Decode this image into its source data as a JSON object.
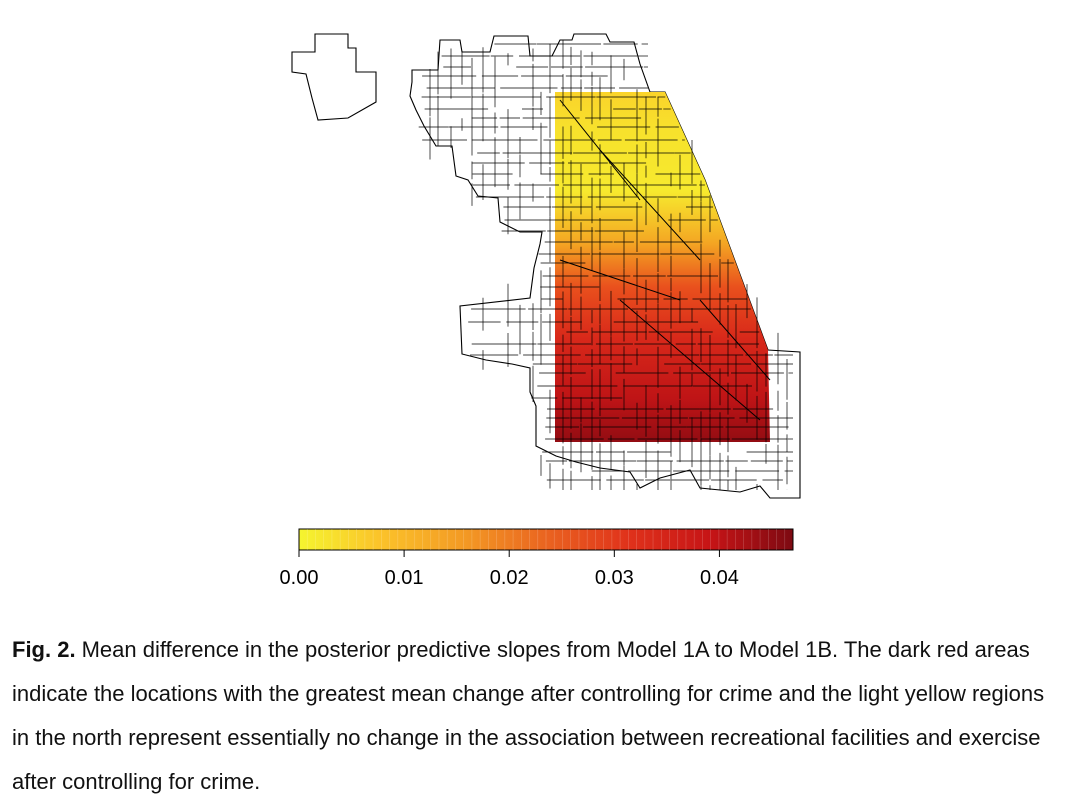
{
  "figure": {
    "colorbar": {
      "colors": [
        "#f5f52f",
        "#fbc22a",
        "#f39a24",
        "#ea6420",
        "#e0321b",
        "#c61416",
        "#7d0a12"
      ],
      "range": [
        0,
        0.047
      ],
      "ticks": [
        "0.00",
        "0.01",
        "0.02",
        "0.03",
        "0.04"
      ],
      "tick_values": [
        0,
        0.01,
        0.02,
        0.03,
        0.04
      ]
    },
    "outline_color": "#000000"
  },
  "caption": {
    "label": "Fig. 2.",
    "text": "Mean difference in the posterior predictive slopes from Model 1A to Model 1B. The dark red areas indicate the locations with the greatest mean change after controlling for crime and the light yellow regions in the north represent essentially no change in the association between recreational facilities and exercise after controlling for crime."
  }
}
